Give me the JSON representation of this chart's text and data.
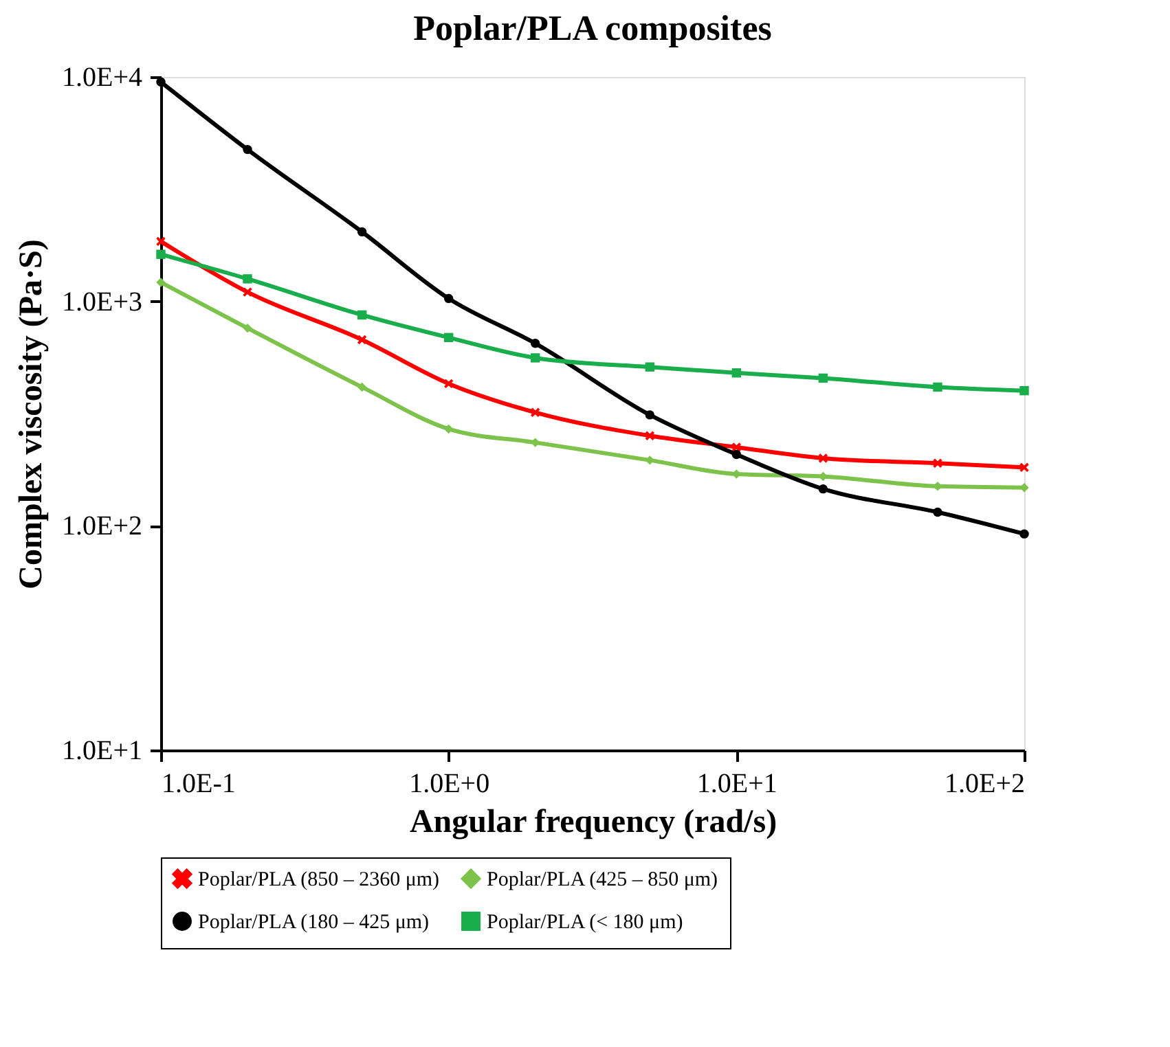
{
  "chart_data": {
    "type": "line",
    "title": "Poplar/PLA composites",
    "xlabel": "Angular frequency (rad/s)",
    "ylabel": "Complex viscosity (Pa·S)",
    "x": [
      0.1,
      0.2,
      0.5,
      1,
      2,
      5,
      10,
      20,
      50,
      100
    ],
    "series": [
      {
        "name": "Poplar/PLA (850 – 2360 μm)",
        "color": "#ff0000",
        "marker": "cross",
        "values": [
          1850,
          1100,
          675,
          430,
          320,
          252,
          224,
          200,
          190,
          182
        ]
      },
      {
        "name": "Poplar/PLA (425 – 850 μm)",
        "color": "#7dc24b",
        "marker": "diamond",
        "values": [
          1215,
          760,
          415,
          270,
          235,
          196,
          170,
          166,
          150,
          148
        ]
      },
      {
        "name": "Poplar/PLA (180 – 425 μm)",
        "color": "#000000",
        "marker": "circle",
        "values": [
          9500,
          4750,
          2040,
          1030,
          650,
          312,
          208,
          146,
          115,
          92
        ]
      },
      {
        "name": "Poplar/PLA (< 180 μm)",
        "color": "#1aad4b",
        "marker": "square",
        "values": [
          1620,
          1260,
          870,
          690,
          560,
          510,
          480,
          455,
          415,
          400
        ]
      }
    ],
    "log": "xy",
    "xlim": [
      0.1,
      100
    ],
    "ylim": [
      10,
      10000
    ],
    "xticks": [
      {
        "value": 0.1,
        "label": "1.0E-1"
      },
      {
        "value": 1,
        "label": "1.0E+0"
      },
      {
        "value": 10,
        "label": "1.0E+1"
      },
      {
        "value": 100,
        "label": "1.0E+2"
      }
    ],
    "yticks": [
      {
        "value": 10,
        "label": "1.0E+1"
      },
      {
        "value": 100,
        "label": "1.0E+2"
      },
      {
        "value": 1000,
        "label": "1.0E+3"
      },
      {
        "value": 10000,
        "label": "1.0E+4"
      }
    ],
    "grid": false,
    "legend": "bottom",
    "line_style": "solid"
  }
}
